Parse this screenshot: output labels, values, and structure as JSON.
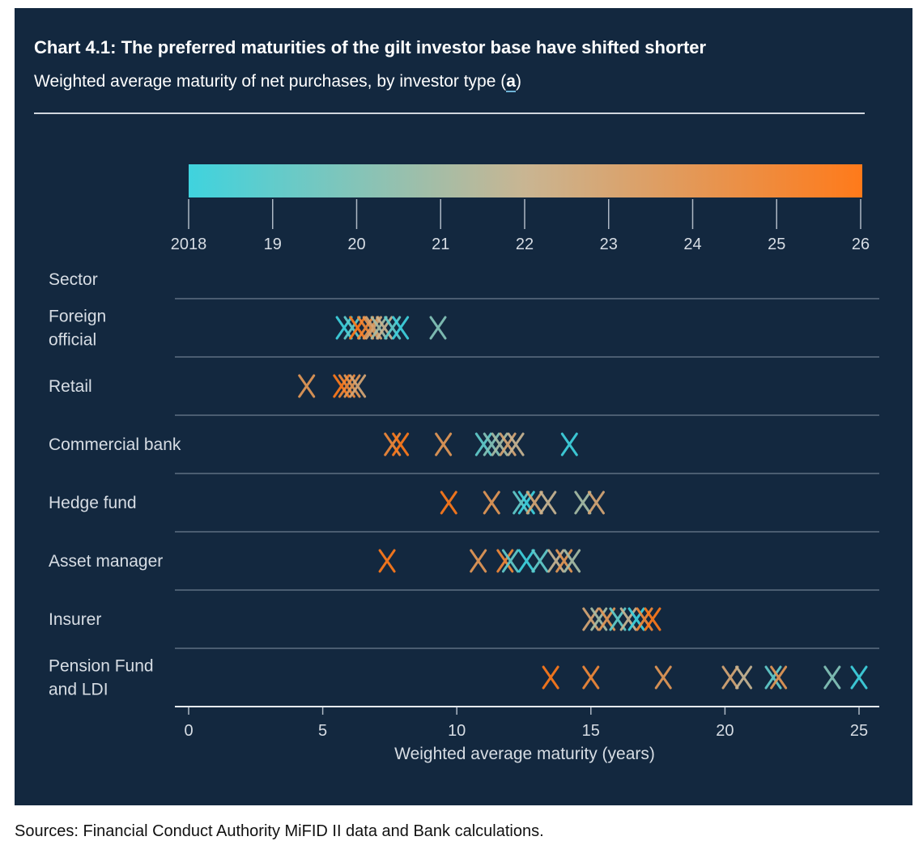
{
  "header": {
    "title": "Chart 4.1: The preferred maturities of the gilt investor base have shifted shorter",
    "subtitle_text": "Weighted average maturity of net purchases, by investor type (",
    "subtitle_note": "a",
    "subtitle_close": ")"
  },
  "footer": {
    "sources": "Sources: Financial Conduct Authority MiFID II data and Bank calculations."
  },
  "colors": {
    "panel": "#13283f",
    "start": "#3fd3de",
    "mid": "#c9b592",
    "end": "#ff7a1a",
    "gridline": "#5e6f82",
    "text": "#d7dde4"
  },
  "chart_data": {
    "type": "scatter",
    "marker": "x",
    "xlabel": "Weighted average maturity (years)",
    "xlim": [
      0,
      25
    ],
    "xticks": [
      "0",
      "5",
      "10",
      "15",
      "20",
      "25"
    ],
    "category_header": "Sector",
    "color_legend": {
      "type": "gradient",
      "placement": "top",
      "range": [
        2018,
        2026
      ],
      "ticks": [
        "2018",
        "19",
        "20",
        "21",
        "22",
        "23",
        "24",
        "25",
        "26"
      ]
    },
    "series": [
      {
        "name": "Foreign official",
        "points": [
          {
            "x": 5.8,
            "year": 2018
          },
          {
            "x": 6.1,
            "year": 2019
          },
          {
            "x": 6.3,
            "year": 2026
          },
          {
            "x": 6.6,
            "year": 2025
          },
          {
            "x": 6.8,
            "year": 2024
          },
          {
            "x": 6.9,
            "year": 2023
          },
          {
            "x": 7.1,
            "year": 2021
          },
          {
            "x": 7.3,
            "year": 2022
          },
          {
            "x": 7.6,
            "year": 2019
          },
          {
            "x": 7.9,
            "year": 2018
          },
          {
            "x": 9.3,
            "year": 2020
          }
        ]
      },
      {
        "name": "Retail",
        "points": [
          {
            "x": 4.4,
            "year": 2024
          },
          {
            "x": 5.7,
            "year": 2026
          },
          {
            "x": 5.9,
            "year": 2025
          },
          {
            "x": 6.1,
            "year": 2024
          },
          {
            "x": 6.3,
            "year": 2023
          }
        ]
      },
      {
        "name": "Commercial bank",
        "points": [
          {
            "x": 7.6,
            "year": 2025
          },
          {
            "x": 7.9,
            "year": 2026
          },
          {
            "x": 9.5,
            "year": 2024
          },
          {
            "x": 11.0,
            "year": 2019
          },
          {
            "x": 11.3,
            "year": 2020
          },
          {
            "x": 11.6,
            "year": 2021
          },
          {
            "x": 11.9,
            "year": 2023
          },
          {
            "x": 12.2,
            "year": 2022
          },
          {
            "x": 14.2,
            "year": 2018
          }
        ]
      },
      {
        "name": "Hedge fund",
        "points": [
          {
            "x": 9.7,
            "year": 2026
          },
          {
            "x": 11.3,
            "year": 2024
          },
          {
            "x": 12.4,
            "year": 2019
          },
          {
            "x": 12.6,
            "year": 2018
          },
          {
            "x": 12.9,
            "year": 2023
          },
          {
            "x": 13.4,
            "year": 2022
          },
          {
            "x": 14.7,
            "year": 2021
          },
          {
            "x": 15.2,
            "year": 2023
          }
        ]
      },
      {
        "name": "Asset manager",
        "points": [
          {
            "x": 7.4,
            "year": 2026
          },
          {
            "x": 10.8,
            "year": 2024
          },
          {
            "x": 11.8,
            "year": 2025
          },
          {
            "x": 12.0,
            "year": 2019
          },
          {
            "x": 12.6,
            "year": 2018
          },
          {
            "x": 13.1,
            "year": 2019
          },
          {
            "x": 13.7,
            "year": 2022
          },
          {
            "x": 14.0,
            "year": 2024
          },
          {
            "x": 14.3,
            "year": 2021
          }
        ]
      },
      {
        "name": "Insurer",
        "points": [
          {
            "x": 15.0,
            "year": 2023
          },
          {
            "x": 15.3,
            "year": 2021
          },
          {
            "x": 15.6,
            "year": 2024
          },
          {
            "x": 16.0,
            "year": 2019
          },
          {
            "x": 16.4,
            "year": 2022
          },
          {
            "x": 16.7,
            "year": 2018
          },
          {
            "x": 17.0,
            "year": 2025
          },
          {
            "x": 17.3,
            "year": 2026
          }
        ]
      },
      {
        "name": "Pension Fund and LDI",
        "points": [
          {
            "x": 13.5,
            "year": 2026
          },
          {
            "x": 15.0,
            "year": 2025
          },
          {
            "x": 17.7,
            "year": 2024
          },
          {
            "x": 20.2,
            "year": 2023
          },
          {
            "x": 20.7,
            "year": 2022
          },
          {
            "x": 21.8,
            "year": 2019
          },
          {
            "x": 22.0,
            "year": 2024
          },
          {
            "x": 24.0,
            "year": 2020
          },
          {
            "x": 25.0,
            "year": 2018
          }
        ]
      }
    ]
  }
}
